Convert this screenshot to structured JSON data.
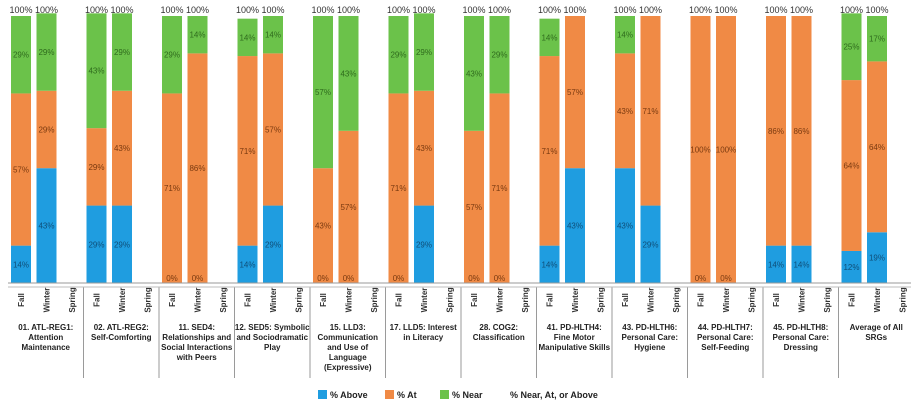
{
  "colors": {
    "above": "#1f9de0",
    "at": "#f08a45",
    "near": "#6bc24a",
    "near_at_above": "#bdbdbd"
  },
  "chart_data": {
    "type": "bar",
    "stacked": true,
    "percent_scale": [
      0,
      100
    ],
    "seasons": [
      "Fall",
      "Winter",
      "Spring"
    ],
    "legend": [
      "% Above",
      "% At",
      "% Near",
      "% Near, At, or Above"
    ],
    "legend_position": "bottom",
    "groups": [
      {
        "label": [
          "01. ATL-REG1:",
          "Attention",
          "Maintenance"
        ],
        "bars": [
          {
            "season": "Fall",
            "above": 14,
            "at": 57,
            "near": 29,
            "total": 100,
            "labels": {
              "above": "14%",
              "at": "57%",
              "near": "29%",
              "total": "100%"
            }
          },
          {
            "season": "Winter",
            "above": 43,
            "at": 29,
            "near": 29,
            "total": 100,
            "labels": {
              "above": "43%",
              "at": "29%",
              "near": "29%",
              "total": "100%"
            }
          }
        ]
      },
      {
        "label": [
          "02. ATL-REG2:",
          "Self-Comforting"
        ],
        "bars": [
          {
            "season": "Fall",
            "above": 29,
            "at": 29,
            "near": 43,
            "total": 100,
            "labels": {
              "above": "29%",
              "at": "29%",
              "near": "43%",
              "total": "100%"
            }
          },
          {
            "season": "Winter",
            "above": 29,
            "at": 43,
            "near": 29,
            "total": 100,
            "labels": {
              "above": "29%",
              "at": "43%",
              "near": "29%",
              "total": "100%"
            }
          }
        ]
      },
      {
        "label": [
          "11. SED4:",
          "Relationships and",
          "Social Interactions",
          "with Peers"
        ],
        "bars": [
          {
            "season": "Fall",
            "above": 0,
            "at": 71,
            "near": 29,
            "total": 100,
            "labels": {
              "above": "0%",
              "at": "71%",
              "near": "29%",
              "total": "100%"
            }
          },
          {
            "season": "Winter",
            "above": 0,
            "at": 86,
            "near": 14,
            "total": 100,
            "labels": {
              "above": "0%",
              "at": "86%",
              "near": "14%",
              "total": "100%"
            }
          }
        ]
      },
      {
        "label": [
          "12. SED5: Symbolic",
          "and Sociodramatic",
          "Play"
        ],
        "bars": [
          {
            "season": "Fall",
            "above": 14,
            "at": 71,
            "near": 14,
            "total": 100,
            "labels": {
              "above": "14%",
              "at": "71%",
              "near": "14%",
              "total": "100%"
            }
          },
          {
            "season": "Winter",
            "above": 29,
            "at": 57,
            "near": 14,
            "total": 100,
            "labels": {
              "above": "29%",
              "at": "57%",
              "near": "14%",
              "total": "100%"
            }
          }
        ]
      },
      {
        "label": [
          "15. LLD3:",
          "Communication",
          "and Use of",
          "Language",
          "(Expressive)"
        ],
        "bars": [
          {
            "season": "Fall",
            "above": 0,
            "at": 43,
            "near": 57,
            "total": 100,
            "labels": {
              "above": "0%",
              "at": "43%",
              "near": "57%",
              "total": "100%"
            }
          },
          {
            "season": "Winter",
            "above": 0,
            "at": 57,
            "near": 43,
            "total": 100,
            "labels": {
              "above": "0%",
              "at": "57%",
              "near": "43%",
              "total": "100%"
            }
          }
        ]
      },
      {
        "label": [
          "17. LLD5: Interest",
          "in Literacy"
        ],
        "bars": [
          {
            "season": "Fall",
            "above": 0,
            "at": 71,
            "near": 29,
            "total": 100,
            "labels": {
              "above": "0%",
              "at": "71%",
              "near": "29%",
              "total": "100%"
            }
          },
          {
            "season": "Winter",
            "above": 29,
            "at": 43,
            "near": 29,
            "total": 100,
            "labels": {
              "above": "29%",
              "at": "43%",
              "near": "29%",
              "total": "100%"
            }
          }
        ]
      },
      {
        "label": [
          "28. COG2:",
          "Classification"
        ],
        "bars": [
          {
            "season": "Fall",
            "above": 0,
            "at": 57,
            "near": 43,
            "total": 100,
            "labels": {
              "above": "0%",
              "at": "57%",
              "near": "43%",
              "total": "100%"
            }
          },
          {
            "season": "Winter",
            "above": 0,
            "at": 71,
            "near": 29,
            "total": 100,
            "labels": {
              "above": "0%",
              "at": "71%",
              "near": "29%",
              "total": "100%"
            }
          }
        ]
      },
      {
        "label": [
          "41. PD-HLTH4:",
          "Fine Motor",
          "Manipulative Skills"
        ],
        "bars": [
          {
            "season": "Fall",
            "above": 14,
            "at": 71,
            "near": 14,
            "total": 100,
            "labels": {
              "above": "14%",
              "at": "71%",
              "near": "14%",
              "total": "100%"
            }
          },
          {
            "season": "Winter",
            "above": 43,
            "at": 57,
            "near": 0,
            "total": 100,
            "labels": {
              "above": "43%",
              "at": "57%",
              "near": "",
              "total": "100%"
            }
          }
        ]
      },
      {
        "label": [
          "43. PD-HLTH6:",
          "Personal Care:",
          "Hygiene"
        ],
        "bars": [
          {
            "season": "Fall",
            "above": 43,
            "at": 43,
            "near": 14,
            "total": 100,
            "labels": {
              "above": "43%",
              "at": "43%",
              "near": "14%",
              "total": "100%"
            }
          },
          {
            "season": "Winter",
            "above": 29,
            "at": 71,
            "near": 0,
            "total": 100,
            "labels": {
              "above": "29%",
              "at": "71%",
              "near": "",
              "total": "100%"
            }
          }
        ]
      },
      {
        "label": [
          "44. PD-HLTH7:",
          "Personal Care:",
          "Self-Feeding"
        ],
        "bars": [
          {
            "season": "Fall",
            "above": 0,
            "at": 100,
            "near": 0,
            "total": 100,
            "labels": {
              "above": "0%",
              "at": "100%",
              "near": "",
              "total": "100%"
            }
          },
          {
            "season": "Winter",
            "above": 0,
            "at": 100,
            "near": 0,
            "total": 100,
            "labels": {
              "above": "0%",
              "at": "100%",
              "near": "",
              "total": "100%"
            }
          }
        ]
      },
      {
        "label": [
          "45. PD-HLTH8:",
          "Personal Care:",
          "Dressing"
        ],
        "bars": [
          {
            "season": "Fall",
            "above": 14,
            "at": 86,
            "near": 0,
            "total": 100,
            "labels": {
              "above": "14%",
              "at": "86%",
              "near": "",
              "total": "100%"
            }
          },
          {
            "season": "Winter",
            "above": 14,
            "at": 86,
            "near": 0,
            "total": 100,
            "labels": {
              "above": "14%",
              "at": "86%",
              "near": "",
              "total": "100%"
            }
          }
        ]
      },
      {
        "label": [
          "Average of All",
          "SRGs"
        ],
        "bars": [
          {
            "season": "Fall",
            "above": 12,
            "at": 64,
            "near": 25,
            "total": 100,
            "labels": {
              "above": "12%",
              "at": "64%",
              "near": "25%",
              "total": "100%"
            }
          },
          {
            "season": "Winter",
            "above": 19,
            "at": 64,
            "near": 17,
            "total": 100,
            "labels": {
              "above": "19%",
              "at": "64%",
              "near": "17%",
              "total": "100%"
            }
          }
        ]
      }
    ]
  }
}
